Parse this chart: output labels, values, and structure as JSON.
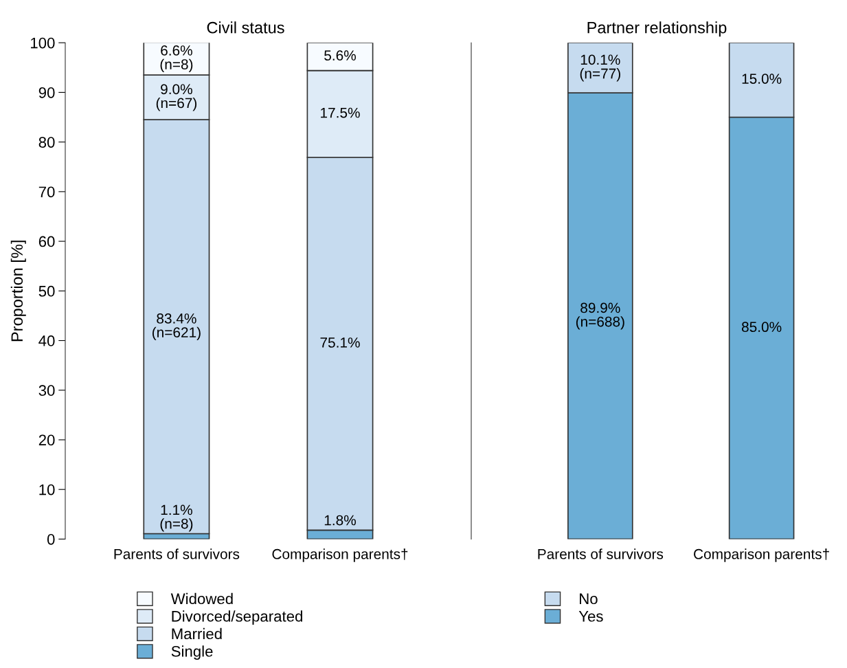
{
  "chart_data": [
    {
      "type": "bar",
      "title": "Civil status",
      "ylabel": "Proportion [%]",
      "categories": [
        "Parents of survivors",
        "Comparison parents†"
      ],
      "stacked": true,
      "ylim": [
        0,
        100
      ],
      "yticks": [
        0,
        10,
        20,
        30,
        40,
        50,
        60,
        70,
        80,
        90,
        100
      ],
      "legend": "bottom",
      "grid": false,
      "series": [
        {
          "name": "Single",
          "color": "#6baed6",
          "values": [
            1.1,
            1.8
          ],
          "value_labels": [
            "1.1%\n(n=8)",
            "1.8%"
          ]
        },
        {
          "name": "Married",
          "color": "#c6dbef",
          "values": [
            83.4,
            75.1
          ],
          "value_labels": [
            "83.4%\n(n=621)",
            "75.1%"
          ]
        },
        {
          "name": "Divorced/separated",
          "color": "#deebf7",
          "values": [
            9.0,
            17.5
          ],
          "value_labels": [
            "9.0%\n(n=67)",
            "17.5%"
          ]
        },
        {
          "name": "Widowed",
          "color": "#f7fbff",
          "values": [
            6.6,
            5.6
          ],
          "value_labels": [
            "6.6%\n(n=8)",
            "5.6%"
          ]
        }
      ]
    },
    {
      "type": "bar",
      "title": "Partner relationship",
      "categories": [
        "Parents of survivors",
        "Comparison parents†"
      ],
      "stacked": true,
      "ylim": [
        0,
        100
      ],
      "tick_labels": "x",
      "legend": "bottom",
      "grid": false,
      "series": [
        {
          "name": "Yes",
          "color": "#6baed6",
          "values": [
            89.9,
            85.0
          ],
          "value_labels": [
            "89.9%\n(n=688)",
            "85.0%"
          ]
        },
        {
          "name": "No",
          "color": "#c6dbef",
          "values": [
            10.1,
            15.0
          ],
          "value_labels": [
            "10.1%\n(n=77)",
            "15.0%"
          ]
        }
      ]
    }
  ]
}
